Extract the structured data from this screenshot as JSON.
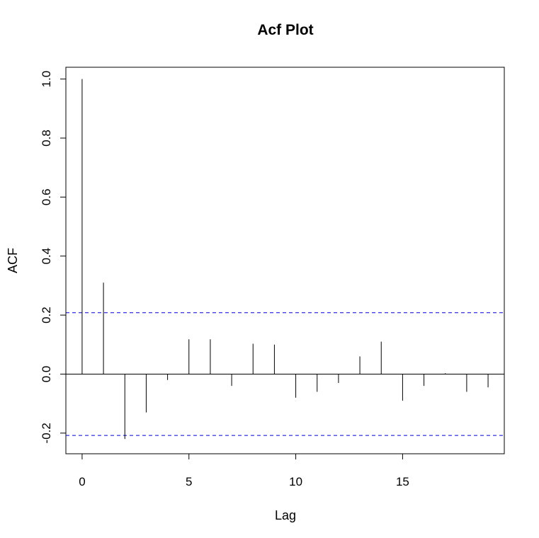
{
  "chart_data": {
    "type": "bar",
    "title": "Acf Plot",
    "xlabel": "Lag",
    "ylabel": "ACF",
    "x": [
      0,
      1,
      2,
      3,
      4,
      5,
      6,
      7,
      8,
      9,
      10,
      11,
      12,
      13,
      14,
      15,
      16,
      17,
      18,
      19
    ],
    "values": [
      1.0,
      0.31,
      -0.22,
      -0.13,
      -0.02,
      0.118,
      0.118,
      -0.04,
      0.103,
      0.1,
      -0.08,
      -0.06,
      -0.03,
      0.06,
      0.11,
      -0.09,
      -0.04,
      0.003,
      -0.06,
      -0.045
    ],
    "xlim": [
      -0.76,
      19.76
    ],
    "ylim": [
      -0.27,
      1.04
    ],
    "x_ticks": [
      0,
      5,
      10,
      15
    ],
    "x_tick_labels": [
      "0",
      "5",
      "10",
      "15"
    ],
    "y_ticks": [
      -0.2,
      0.0,
      0.2,
      0.4,
      0.6,
      0.8,
      1.0
    ],
    "y_tick_labels": [
      "-0.2",
      "0.0",
      "0.2",
      "0.4",
      "0.6",
      "0.8",
      "1.0"
    ],
    "confidence_bounds": [
      0.208,
      -0.208
    ],
    "colors": {
      "bars": "#000000",
      "confidence_line": "#0000cd",
      "frame": "#000000"
    },
    "grid": false
  }
}
